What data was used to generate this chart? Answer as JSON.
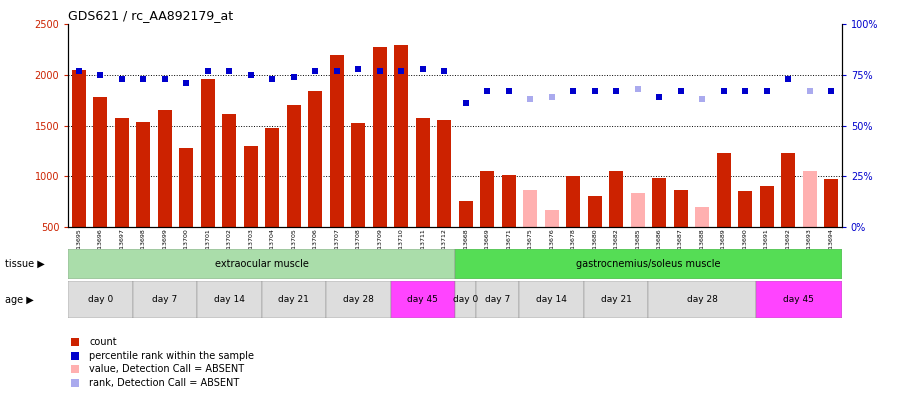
{
  "title": "GDS621 / rc_AA892179_at",
  "samples": [
    "GSM13695",
    "GSM13696",
    "GSM13697",
    "GSM13698",
    "GSM13699",
    "GSM13700",
    "GSM13701",
    "GSM13702",
    "GSM13703",
    "GSM13704",
    "GSM13705",
    "GSM13706",
    "GSM13707",
    "GSM13708",
    "GSM13709",
    "GSM13710",
    "GSM13711",
    "GSM13712",
    "GSM13668",
    "GSM13669",
    "GSM13671",
    "GSM13675",
    "GSM13676",
    "GSM13678",
    "GSM13680",
    "GSM13682",
    "GSM13685",
    "GSM13686",
    "GSM13687",
    "GSM13688",
    "GSM13689",
    "GSM13690",
    "GSM13691",
    "GSM13692",
    "GSM13693",
    "GSM13694"
  ],
  "count_values": [
    2050,
    1780,
    1570,
    1540,
    1650,
    1280,
    1960,
    1610,
    1300,
    1480,
    1700,
    1840,
    2200,
    1530,
    2280,
    2300,
    1570,
    1550,
    750,
    1050,
    1010,
    860,
    670,
    1000,
    800,
    1050,
    830,
    980,
    860,
    700,
    1230,
    850,
    900,
    1230,
    1050,
    970
  ],
  "count_absent": [
    false,
    false,
    false,
    false,
    false,
    false,
    false,
    false,
    false,
    false,
    false,
    false,
    false,
    false,
    false,
    false,
    false,
    false,
    false,
    false,
    false,
    true,
    true,
    false,
    false,
    false,
    true,
    false,
    false,
    true,
    false,
    false,
    false,
    false,
    true,
    false
  ],
  "percentile_rank": [
    77,
    75,
    73,
    73,
    73,
    71,
    77,
    77,
    75,
    73,
    74,
    77,
    77,
    78,
    77,
    77,
    78,
    77,
    61,
    67,
    67,
    63,
    64,
    67,
    67,
    67,
    68,
    64,
    67,
    63,
    67,
    67,
    67,
    73,
    67,
    67
  ],
  "rank_absent": [
    false,
    false,
    false,
    false,
    false,
    false,
    false,
    false,
    false,
    false,
    false,
    false,
    false,
    false,
    false,
    false,
    false,
    false,
    false,
    false,
    false,
    true,
    true,
    false,
    false,
    false,
    true,
    false,
    false,
    true,
    false,
    false,
    false,
    false,
    true,
    false
  ],
  "ylim": [
    500,
    2500
  ],
  "y2lim": [
    0,
    100
  ],
  "yticks": [
    500,
    1000,
    1500,
    2000,
    2500
  ],
  "y2ticks": [
    0,
    25,
    50,
    75,
    100
  ],
  "grid_lines": [
    1000,
    1500,
    2000
  ],
  "bar_color_present": "#CC2200",
  "bar_color_absent": "#FFB0B0",
  "dot_color_present": "#0000CC",
  "dot_color_absent": "#AAAAEE",
  "background_color": "#ffffff",
  "tissue1_color": "#AADDAA",
  "tissue2_color": "#55DD55",
  "age_normal_color": "#DDDDDD",
  "age_day45_color": "#FF44FF",
  "n_extrao": 18,
  "n_gastro": 18,
  "age_starts_extra": [
    0,
    3,
    6,
    9,
    12,
    15
  ],
  "age_widths_extra": [
    3,
    3,
    3,
    3,
    3,
    3
  ],
  "age_labels_extra": [
    "day 0",
    "day 7",
    "day 14",
    "day 21",
    "day 28",
    "day 45"
  ],
  "age_starts_gastro": [
    18,
    19,
    21,
    24,
    27,
    32
  ],
  "age_widths_gastro": [
    1,
    2,
    3,
    3,
    5,
    4
  ],
  "age_labels_gastro": [
    "day 0",
    "day 7",
    "day 14",
    "day 21",
    "day 28",
    "day 45"
  ],
  "legend_items": [
    {
      "color": "#CC2200",
      "label": "count"
    },
    {
      "color": "#0000CC",
      "label": "percentile rank within the sample"
    },
    {
      "color": "#FFB0B0",
      "label": "value, Detection Call = ABSENT"
    },
    {
      "color": "#AAAAEE",
      "label": "rank, Detection Call = ABSENT"
    }
  ]
}
